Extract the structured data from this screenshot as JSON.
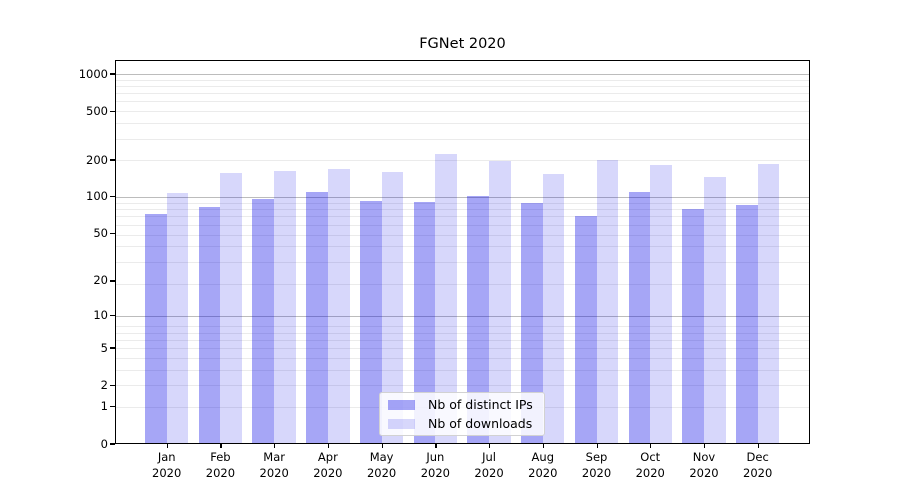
{
  "title": "FGNet 2020",
  "chart_data": {
    "type": "bar",
    "title": "FGNet 2020",
    "categories": [
      "Jan 2020",
      "Feb 2020",
      "Mar 2020",
      "Apr 2020",
      "May 2020",
      "Jun 2020",
      "Jul 2020",
      "Aug 2020",
      "Sep 2020",
      "Oct 2020",
      "Nov 2020",
      "Dec 2020"
    ],
    "series": [
      {
        "name": "Nb of distinct IPs",
        "fill": "rgba(0,0,230,0.35)",
        "values": [
          73,
          82,
          96,
          110,
          93,
          90,
          102,
          89,
          70,
          110,
          79,
          85
        ]
      },
      {
        "name": "Nb of downloads",
        "fill": "rgba(0,0,230,0.155)",
        "values": [
          107,
          158,
          164,
          168,
          159,
          224,
          196,
          153,
          200,
          183,
          146,
          186
        ]
      }
    ],
    "yscale": "log10(1+y)",
    "yticks": [
      1000,
      500,
      200,
      100,
      50,
      20,
      10,
      5,
      2,
      1,
      0
    ],
    "ylim": [
      0,
      1300
    ],
    "xlabel": "",
    "ylabel": "",
    "grid": {
      "major_color": "#bcbcbc",
      "minor_color": "#ebebeb",
      "major_at": [
        10,
        100,
        1000
      ],
      "minor_at": "2-9 per decade in (1+y) space"
    },
    "legend_position": "lower center"
  },
  "colors": {
    "bar_dark_on_white": "#aaaaf6",
    "bar_light_on_white": "#d8d8fb",
    "axis": "#000000",
    "background": "#ffffff"
  }
}
